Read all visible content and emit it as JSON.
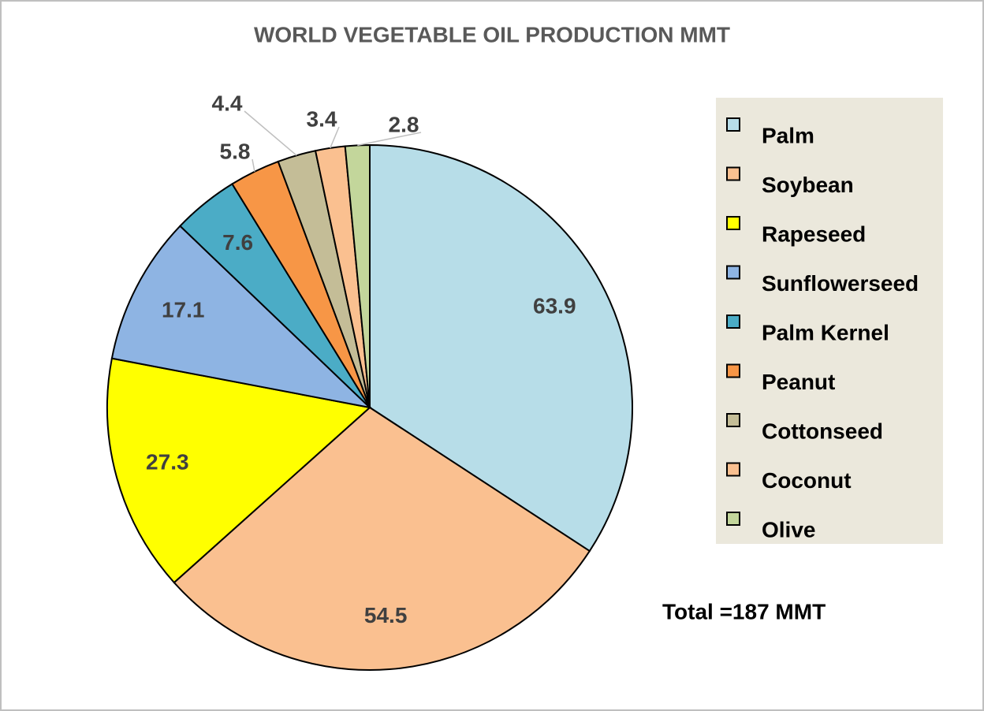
{
  "chart_data": {
    "type": "pie",
    "title": "WORLD VEGETABLE OIL PRODUCTION  MMT",
    "categories": [
      "Palm",
      "Soybean",
      "Rapeseed",
      "Sunflowerseed",
      "Palm Kernel",
      "Peanut",
      "Cottonseed",
      "Coconut",
      "Olive"
    ],
    "values": [
      63.9,
      54.5,
      27.3,
      17.1,
      7.6,
      5.8,
      4.4,
      3.4,
      2.8
    ],
    "colors": [
      "#b7dde8",
      "#fac090",
      "#ffff00",
      "#8eb4e3",
      "#4bacc6",
      "#f79646",
      "#c4bd97",
      "#fac090",
      "#c3d69b"
    ],
    "legend": "right",
    "annotation": "Total =187 MMT"
  }
}
